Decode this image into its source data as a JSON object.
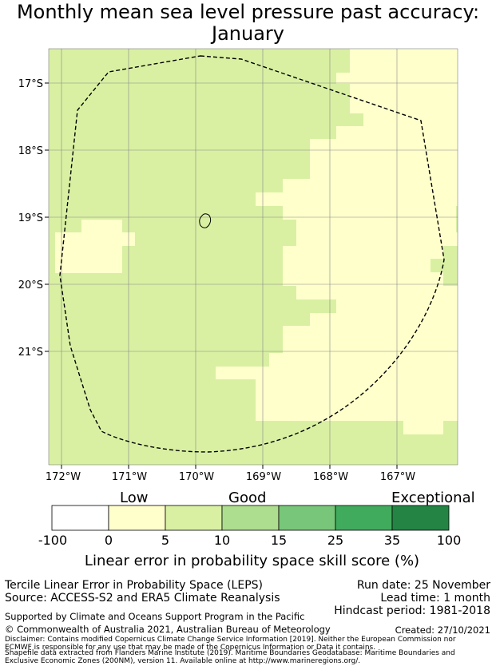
{
  "title": {
    "line1": "Monthly mean sea level pressure past accuracy:",
    "line2": "January"
  },
  "map": {
    "y_axis_labels": [
      "17°S",
      "18°S",
      "19°S",
      "20°S",
      "21°S"
    ],
    "x_axis_labels": [
      "172°W",
      "171°W",
      "170°W",
      "169°W",
      "168°W",
      "167°W"
    ],
    "colors": {
      "low": "#ffffcc",
      "good": "#d9f0a3",
      "boundary_line": "#000000",
      "grid": "#888888"
    }
  },
  "colorbar": {
    "categories": [
      "Low",
      "Good",
      "Exceptional"
    ],
    "ticks": [
      "-100",
      "0",
      "5",
      "10",
      "15",
      "25",
      "35",
      "100"
    ],
    "colors": [
      "#ffffff",
      "#ffffcc",
      "#d9f0a3",
      "#addd8e",
      "#78c679",
      "#41ab5d",
      "#238443"
    ],
    "label": "Linear error in probability space skill score (%)"
  },
  "info": {
    "method": "Tercile Linear Error in Probability Space (LEPS)",
    "source": "Source: ACCESS-S2 and ERA5 Climate Reanalysis",
    "run_date": "Run date: 25 November",
    "lead_time": "Lead time: 1 month",
    "hindcast": "Hindcast period: 1981-2018",
    "support": "Supported by Climate and Oceans Support Program in the Pacific",
    "copyright": "© Commonwealth of Australia 2021, Australian Bureau of Meteorology",
    "created": "Created: 27/10/2021",
    "disclaimer1": "Disclaimer: Contains modified Copernicus Climate Change Service Information [2019]. Neither the European Commission nor ECMWF is responsible for any use that may be made of the Copernicus Information or Data it contains.",
    "disclaimer2": "Shapefile data extracted from Flanders Marine Institute (2019). Maritime Boundaries Geodatabase: Maritime Boundaries and Exclusive Economic Zones (200NM), version 11. Available online at http://www.marineregions.org/."
  }
}
